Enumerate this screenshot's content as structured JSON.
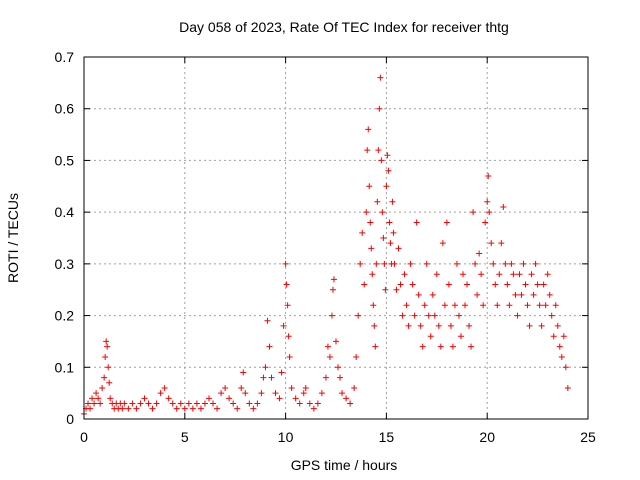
{
  "chart_data": {
    "type": "scatter",
    "title": "Day 058 of 2023, Rate Of TEC Index for receiver thtg",
    "xlabel": "GPS time / hours",
    "ylabel": "ROTI / TECUs",
    "xlim": [
      0,
      25
    ],
    "ylim": [
      0,
      0.7
    ],
    "xticks": [
      0,
      5,
      10,
      15,
      20,
      25
    ],
    "xtick_labels": [
      "0",
      "5",
      "10",
      "15",
      "20",
      "25"
    ],
    "yticks": [
      0,
      0.1,
      0.2,
      0.3,
      0.4,
      0.5,
      0.6,
      0.7
    ],
    "ytick_labels": [
      "0",
      "0.1",
      "0.2",
      "0.3",
      "0.4",
      "0.5",
      "0.6",
      "0.7"
    ],
    "grid": true,
    "marker": "+",
    "series": [
      {
        "name": "ROTI",
        "color": "#ff0000",
        "points": [
          [
            0.0,
            0.01
          ],
          [
            0.1,
            0.02
          ],
          [
            0.2,
            0.03
          ],
          [
            0.3,
            0.02
          ],
          [
            0.4,
            0.04
          ],
          [
            0.5,
            0.03
          ],
          [
            0.6,
            0.05
          ],
          [
            0.7,
            0.04
          ],
          [
            0.8,
            0.03
          ],
          [
            0.9,
            0.06
          ],
          [
            1.0,
            0.08
          ],
          [
            1.05,
            0.12
          ],
          [
            1.1,
            0.15
          ],
          [
            1.15,
            0.14
          ],
          [
            1.2,
            0.1
          ],
          [
            1.25,
            0.07
          ],
          [
            1.3,
            0.04
          ],
          [
            1.4,
            0.03
          ],
          [
            1.5,
            0.02
          ],
          [
            1.6,
            0.03
          ],
          [
            1.7,
            0.02
          ],
          [
            1.8,
            0.03
          ],
          [
            1.9,
            0.02
          ],
          [
            2.0,
            0.03
          ],
          [
            2.2,
            0.02
          ],
          [
            2.4,
            0.03
          ],
          [
            2.6,
            0.02
          ],
          [
            2.8,
            0.03
          ],
          [
            3.0,
            0.04
          ],
          [
            3.2,
            0.03
          ],
          [
            3.4,
            0.02
          ],
          [
            3.6,
            0.03
          ],
          [
            3.8,
            0.05
          ],
          [
            4.0,
            0.06
          ],
          [
            4.2,
            0.04
          ],
          [
            4.4,
            0.03
          ],
          [
            4.6,
            0.02
          ],
          [
            4.8,
            0.03
          ],
          [
            5.0,
            0.02
          ],
          [
            5.2,
            0.03
          ],
          [
            5.4,
            0.02
          ],
          [
            5.6,
            0.03
          ],
          [
            5.8,
            0.02
          ],
          [
            6.0,
            0.03
          ],
          [
            6.2,
            0.04
          ],
          [
            6.4,
            0.03
          ],
          [
            6.6,
            0.02
          ],
          [
            6.8,
            0.05
          ],
          [
            7.0,
            0.06
          ],
          [
            7.2,
            0.04
          ],
          [
            7.4,
            0.03
          ],
          [
            7.6,
            0.02
          ],
          [
            7.8,
            0.06
          ],
          [
            7.9,
            0.09
          ],
          [
            8.0,
            0.05
          ],
          [
            8.2,
            0.03
          ],
          [
            8.4,
            0.02
          ],
          [
            8.6,
            0.03
          ],
          [
            8.8,
            0.05
          ],
          [
            8.9,
            0.08
          ],
          [
            9.0,
            0.1
          ],
          [
            9.1,
            0.19
          ],
          [
            9.2,
            0.14
          ],
          [
            9.3,
            0.08
          ],
          [
            9.5,
            0.05
          ],
          [
            9.7,
            0.04
          ],
          [
            9.8,
            0.09
          ],
          [
            9.9,
            0.18
          ],
          [
            10.0,
            0.3
          ],
          [
            10.05,
            0.26
          ],
          [
            10.1,
            0.22
          ],
          [
            10.15,
            0.16
          ],
          [
            10.2,
            0.12
          ],
          [
            10.3,
            0.06
          ],
          [
            10.5,
            0.04
          ],
          [
            10.7,
            0.03
          ],
          [
            10.9,
            0.05
          ],
          [
            11.0,
            0.06
          ],
          [
            11.2,
            0.03
          ],
          [
            11.4,
            0.02
          ],
          [
            11.6,
            0.03
          ],
          [
            11.8,
            0.05
          ],
          [
            12.0,
            0.08
          ],
          [
            12.1,
            0.14
          ],
          [
            12.2,
            0.12
          ],
          [
            12.3,
            0.2
          ],
          [
            12.35,
            0.25
          ],
          [
            12.4,
            0.27
          ],
          [
            12.5,
            0.15
          ],
          [
            12.6,
            0.1
          ],
          [
            12.7,
            0.08
          ],
          [
            12.8,
            0.05
          ],
          [
            13.0,
            0.04
          ],
          [
            13.2,
            0.03
          ],
          [
            13.4,
            0.06
          ],
          [
            13.5,
            0.12
          ],
          [
            13.6,
            0.2
          ],
          [
            13.7,
            0.3
          ],
          [
            13.8,
            0.36
          ],
          [
            13.9,
            0.26
          ],
          [
            14.0,
            0.4
          ],
          [
            14.05,
            0.52
          ],
          [
            14.1,
            0.56
          ],
          [
            14.15,
            0.45
          ],
          [
            14.2,
            0.38
          ],
          [
            14.25,
            0.33
          ],
          [
            14.3,
            0.28
          ],
          [
            14.35,
            0.22
          ],
          [
            14.4,
            0.18
          ],
          [
            14.45,
            0.14
          ],
          [
            14.5,
            0.3
          ],
          [
            14.55,
            0.42
          ],
          [
            14.6,
            0.52
          ],
          [
            14.65,
            0.6
          ],
          [
            14.7,
            0.66
          ],
          [
            14.75,
            0.5
          ],
          [
            14.8,
            0.4
          ],
          [
            14.85,
            0.35
          ],
          [
            14.9,
            0.3
          ],
          [
            14.95,
            0.25
          ],
          [
            15.0,
            0.45
          ],
          [
            15.05,
            0.51
          ],
          [
            15.1,
            0.48
          ],
          [
            15.15,
            0.38
          ],
          [
            15.2,
            0.34
          ],
          [
            15.25,
            0.3
          ],
          [
            15.3,
            0.42
          ],
          [
            15.35,
            0.36
          ],
          [
            15.4,
            0.3
          ],
          [
            15.5,
            0.25
          ],
          [
            15.6,
            0.33
          ],
          [
            15.7,
            0.26
          ],
          [
            15.8,
            0.2
          ],
          [
            15.9,
            0.28
          ],
          [
            16.0,
            0.22
          ],
          [
            16.1,
            0.18
          ],
          [
            16.2,
            0.3
          ],
          [
            16.3,
            0.26
          ],
          [
            16.4,
            0.2
          ],
          [
            16.5,
            0.38
          ],
          [
            16.6,
            0.24
          ],
          [
            16.7,
            0.18
          ],
          [
            16.8,
            0.14
          ],
          [
            16.9,
            0.22
          ],
          [
            17.0,
            0.3
          ],
          [
            17.1,
            0.2
          ],
          [
            17.2,
            0.16
          ],
          [
            17.3,
            0.24
          ],
          [
            17.4,
            0.2
          ],
          [
            17.5,
            0.28
          ],
          [
            17.6,
            0.18
          ],
          [
            17.7,
            0.14
          ],
          [
            17.8,
            0.34
          ],
          [
            17.9,
            0.22
          ],
          [
            18.0,
            0.38
          ],
          [
            18.1,
            0.26
          ],
          [
            18.2,
            0.18
          ],
          [
            18.3,
            0.14
          ],
          [
            18.4,
            0.22
          ],
          [
            18.5,
            0.3
          ],
          [
            18.6,
            0.2
          ],
          [
            18.7,
            0.16
          ],
          [
            18.8,
            0.28
          ],
          [
            18.9,
            0.22
          ],
          [
            19.0,
            0.26
          ],
          [
            19.1,
            0.18
          ],
          [
            19.2,
            0.14
          ],
          [
            19.3,
            0.4
          ],
          [
            19.4,
            0.3
          ],
          [
            19.5,
            0.24
          ],
          [
            19.6,
            0.32
          ],
          [
            19.7,
            0.28
          ],
          [
            19.8,
            0.22
          ],
          [
            19.9,
            0.38
          ],
          [
            20.0,
            0.42
          ],
          [
            20.05,
            0.47
          ],
          [
            20.1,
            0.4
          ],
          [
            20.2,
            0.34
          ],
          [
            20.3,
            0.3
          ],
          [
            20.4,
            0.26
          ],
          [
            20.5,
            0.22
          ],
          [
            20.6,
            0.28
          ],
          [
            20.7,
            0.34
          ],
          [
            20.8,
            0.41
          ],
          [
            20.9,
            0.3
          ],
          [
            21.0,
            0.26
          ],
          [
            21.1,
            0.22
          ],
          [
            21.2,
            0.3
          ],
          [
            21.3,
            0.28
          ],
          [
            21.4,
            0.24
          ],
          [
            21.5,
            0.2
          ],
          [
            21.6,
            0.28
          ],
          [
            21.7,
            0.24
          ],
          [
            21.8,
            0.3
          ],
          [
            21.9,
            0.26
          ],
          [
            22.0,
            0.22
          ],
          [
            22.1,
            0.18
          ],
          [
            22.2,
            0.28
          ],
          [
            22.3,
            0.24
          ],
          [
            22.4,
            0.3
          ],
          [
            22.5,
            0.26
          ],
          [
            22.6,
            0.22
          ],
          [
            22.7,
            0.18
          ],
          [
            22.8,
            0.26
          ],
          [
            22.9,
            0.22
          ],
          [
            23.0,
            0.28
          ],
          [
            23.1,
            0.24
          ],
          [
            23.2,
            0.2
          ],
          [
            23.3,
            0.16
          ],
          [
            23.4,
            0.22
          ],
          [
            23.5,
            0.18
          ],
          [
            23.6,
            0.14
          ],
          [
            23.7,
            0.12
          ],
          [
            23.8,
            0.16
          ],
          [
            23.9,
            0.1
          ],
          [
            24.0,
            0.06
          ]
        ]
      }
    ]
  }
}
